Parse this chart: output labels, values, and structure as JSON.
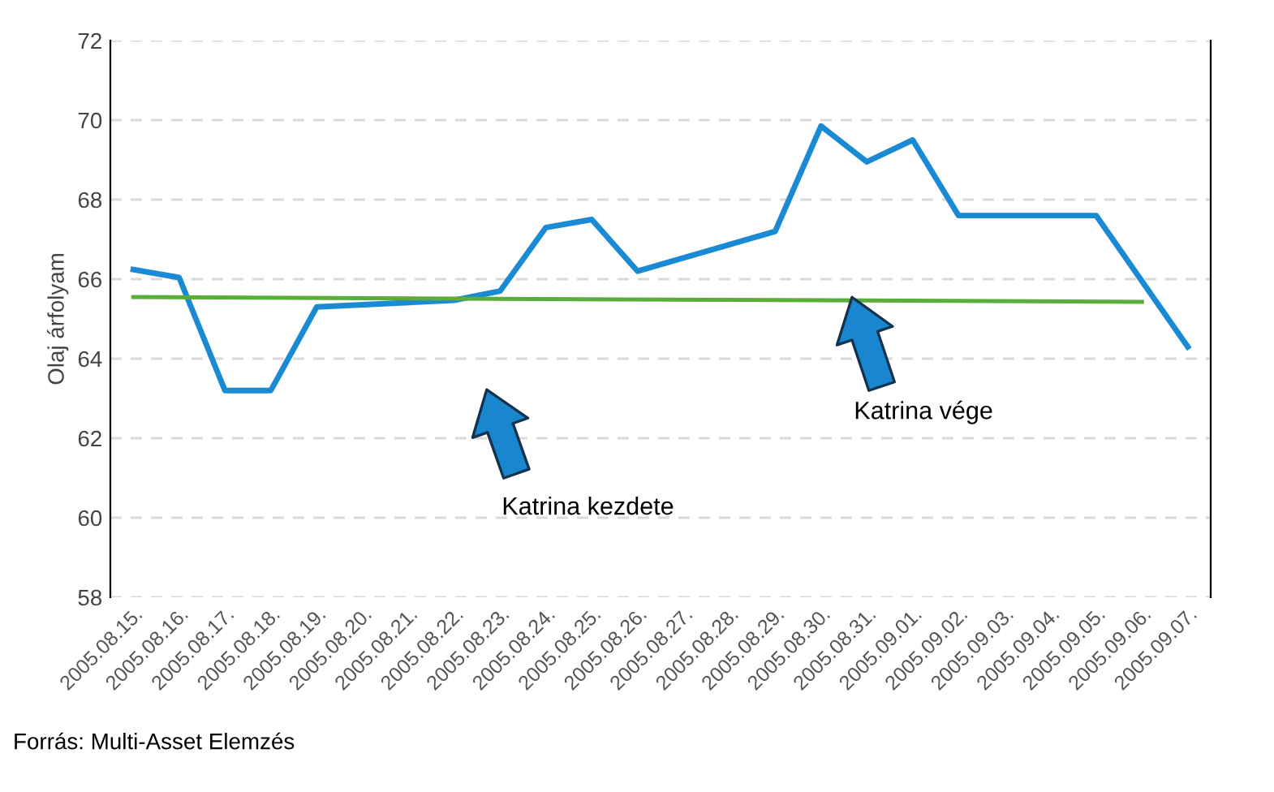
{
  "chart_data": {
    "type": "line",
    "ylabel": "Olaj árfolyam",
    "categories": [
      "2005.08.15.",
      "2005.08.16.",
      "2005.08.17.",
      "2005.08.18.",
      "2005.08.19.",
      "2005.08.20.",
      "2005.08.21.",
      "2005.08.22.",
      "2005.08.23.",
      "2005.08.24.",
      "2005.08.25.",
      "2005.08.26.",
      "2005.08.27.",
      "2005.08.28.",
      "2005.08.29.",
      "2005.08.30.",
      "2005.08.31.",
      "2005.09.01.",
      "2005.09.02.",
      "2005.09.03.",
      "2005.09.04.",
      "2005.09.05.",
      "2005.09.06.",
      "2005.09.07."
    ],
    "series": [
      {
        "color": "#1a8ad4",
        "values": [
          66.24,
          66.04,
          63.2,
          63.2,
          65.3,
          null,
          null,
          65.47,
          65.7,
          67.3,
          67.5,
          66.2,
          null,
          null,
          67.2,
          69.85,
          68.95,
          69.5,
          67.6,
          null,
          null,
          67.6,
          null,
          64.3
        ]
      },
      {
        "color": "#5aad3a",
        "values": [
          65.55,
          null,
          null,
          null,
          null,
          null,
          null,
          null,
          null,
          null,
          null,
          null,
          null,
          null,
          null,
          null,
          null,
          null,
          null,
          null,
          null,
          null,
          65.43,
          null
        ]
      }
    ],
    "ylim": [
      58,
      72
    ],
    "yticks": [
      58,
      60,
      62,
      64,
      66,
      68,
      70,
      72
    ],
    "grid": "y",
    "marker": "none",
    "line_style": "solid",
    "annotations": [
      "Katrina kezdete",
      "Katrina vége",
      "Forrás: Multi-Asset Elemzés"
    ]
  }
}
